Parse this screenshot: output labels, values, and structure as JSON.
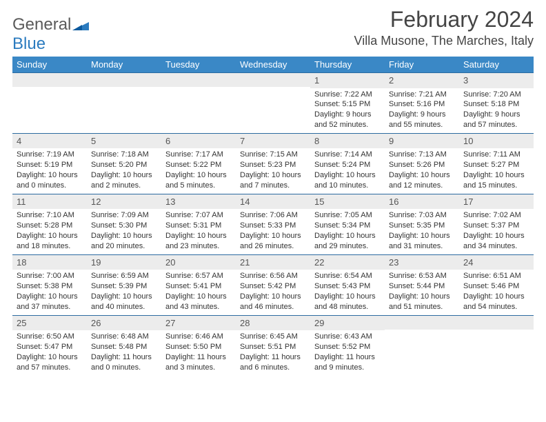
{
  "brand": {
    "word1": "General",
    "word2": "Blue"
  },
  "title": "February 2024",
  "location": "Villa Musone, The Marches, Italy",
  "colors": {
    "header_bg": "#3a88c6",
    "row_border": "#2b6aa0",
    "daynum_bg": "#ececec",
    "text": "#333333"
  },
  "weekdays": [
    "Sunday",
    "Monday",
    "Tuesday",
    "Wednesday",
    "Thursday",
    "Friday",
    "Saturday"
  ],
  "weeks": [
    [
      {
        "n": "",
        "sr": "",
        "ss": "",
        "dl": ""
      },
      {
        "n": "",
        "sr": "",
        "ss": "",
        "dl": ""
      },
      {
        "n": "",
        "sr": "",
        "ss": "",
        "dl": ""
      },
      {
        "n": "",
        "sr": "",
        "ss": "",
        "dl": ""
      },
      {
        "n": "1",
        "sr": "Sunrise: 7:22 AM",
        "ss": "Sunset: 5:15 PM",
        "dl": "Daylight: 9 hours and 52 minutes."
      },
      {
        "n": "2",
        "sr": "Sunrise: 7:21 AM",
        "ss": "Sunset: 5:16 PM",
        "dl": "Daylight: 9 hours and 55 minutes."
      },
      {
        "n": "3",
        "sr": "Sunrise: 7:20 AM",
        "ss": "Sunset: 5:18 PM",
        "dl": "Daylight: 9 hours and 57 minutes."
      }
    ],
    [
      {
        "n": "4",
        "sr": "Sunrise: 7:19 AM",
        "ss": "Sunset: 5:19 PM",
        "dl": "Daylight: 10 hours and 0 minutes."
      },
      {
        "n": "5",
        "sr": "Sunrise: 7:18 AM",
        "ss": "Sunset: 5:20 PM",
        "dl": "Daylight: 10 hours and 2 minutes."
      },
      {
        "n": "6",
        "sr": "Sunrise: 7:17 AM",
        "ss": "Sunset: 5:22 PM",
        "dl": "Daylight: 10 hours and 5 minutes."
      },
      {
        "n": "7",
        "sr": "Sunrise: 7:15 AM",
        "ss": "Sunset: 5:23 PM",
        "dl": "Daylight: 10 hours and 7 minutes."
      },
      {
        "n": "8",
        "sr": "Sunrise: 7:14 AM",
        "ss": "Sunset: 5:24 PM",
        "dl": "Daylight: 10 hours and 10 minutes."
      },
      {
        "n": "9",
        "sr": "Sunrise: 7:13 AM",
        "ss": "Sunset: 5:26 PM",
        "dl": "Daylight: 10 hours and 12 minutes."
      },
      {
        "n": "10",
        "sr": "Sunrise: 7:11 AM",
        "ss": "Sunset: 5:27 PM",
        "dl": "Daylight: 10 hours and 15 minutes."
      }
    ],
    [
      {
        "n": "11",
        "sr": "Sunrise: 7:10 AM",
        "ss": "Sunset: 5:28 PM",
        "dl": "Daylight: 10 hours and 18 minutes."
      },
      {
        "n": "12",
        "sr": "Sunrise: 7:09 AM",
        "ss": "Sunset: 5:30 PM",
        "dl": "Daylight: 10 hours and 20 minutes."
      },
      {
        "n": "13",
        "sr": "Sunrise: 7:07 AM",
        "ss": "Sunset: 5:31 PM",
        "dl": "Daylight: 10 hours and 23 minutes."
      },
      {
        "n": "14",
        "sr": "Sunrise: 7:06 AM",
        "ss": "Sunset: 5:33 PM",
        "dl": "Daylight: 10 hours and 26 minutes."
      },
      {
        "n": "15",
        "sr": "Sunrise: 7:05 AM",
        "ss": "Sunset: 5:34 PM",
        "dl": "Daylight: 10 hours and 29 minutes."
      },
      {
        "n": "16",
        "sr": "Sunrise: 7:03 AM",
        "ss": "Sunset: 5:35 PM",
        "dl": "Daylight: 10 hours and 31 minutes."
      },
      {
        "n": "17",
        "sr": "Sunrise: 7:02 AM",
        "ss": "Sunset: 5:37 PM",
        "dl": "Daylight: 10 hours and 34 minutes."
      }
    ],
    [
      {
        "n": "18",
        "sr": "Sunrise: 7:00 AM",
        "ss": "Sunset: 5:38 PM",
        "dl": "Daylight: 10 hours and 37 minutes."
      },
      {
        "n": "19",
        "sr": "Sunrise: 6:59 AM",
        "ss": "Sunset: 5:39 PM",
        "dl": "Daylight: 10 hours and 40 minutes."
      },
      {
        "n": "20",
        "sr": "Sunrise: 6:57 AM",
        "ss": "Sunset: 5:41 PM",
        "dl": "Daylight: 10 hours and 43 minutes."
      },
      {
        "n": "21",
        "sr": "Sunrise: 6:56 AM",
        "ss": "Sunset: 5:42 PM",
        "dl": "Daylight: 10 hours and 46 minutes."
      },
      {
        "n": "22",
        "sr": "Sunrise: 6:54 AM",
        "ss": "Sunset: 5:43 PM",
        "dl": "Daylight: 10 hours and 48 minutes."
      },
      {
        "n": "23",
        "sr": "Sunrise: 6:53 AM",
        "ss": "Sunset: 5:44 PM",
        "dl": "Daylight: 10 hours and 51 minutes."
      },
      {
        "n": "24",
        "sr": "Sunrise: 6:51 AM",
        "ss": "Sunset: 5:46 PM",
        "dl": "Daylight: 10 hours and 54 minutes."
      }
    ],
    [
      {
        "n": "25",
        "sr": "Sunrise: 6:50 AM",
        "ss": "Sunset: 5:47 PM",
        "dl": "Daylight: 10 hours and 57 minutes."
      },
      {
        "n": "26",
        "sr": "Sunrise: 6:48 AM",
        "ss": "Sunset: 5:48 PM",
        "dl": "Daylight: 11 hours and 0 minutes."
      },
      {
        "n": "27",
        "sr": "Sunrise: 6:46 AM",
        "ss": "Sunset: 5:50 PM",
        "dl": "Daylight: 11 hours and 3 minutes."
      },
      {
        "n": "28",
        "sr": "Sunrise: 6:45 AM",
        "ss": "Sunset: 5:51 PM",
        "dl": "Daylight: 11 hours and 6 minutes."
      },
      {
        "n": "29",
        "sr": "Sunrise: 6:43 AM",
        "ss": "Sunset: 5:52 PM",
        "dl": "Daylight: 11 hours and 9 minutes."
      },
      {
        "n": "",
        "sr": "",
        "ss": "",
        "dl": ""
      },
      {
        "n": "",
        "sr": "",
        "ss": "",
        "dl": ""
      }
    ]
  ]
}
